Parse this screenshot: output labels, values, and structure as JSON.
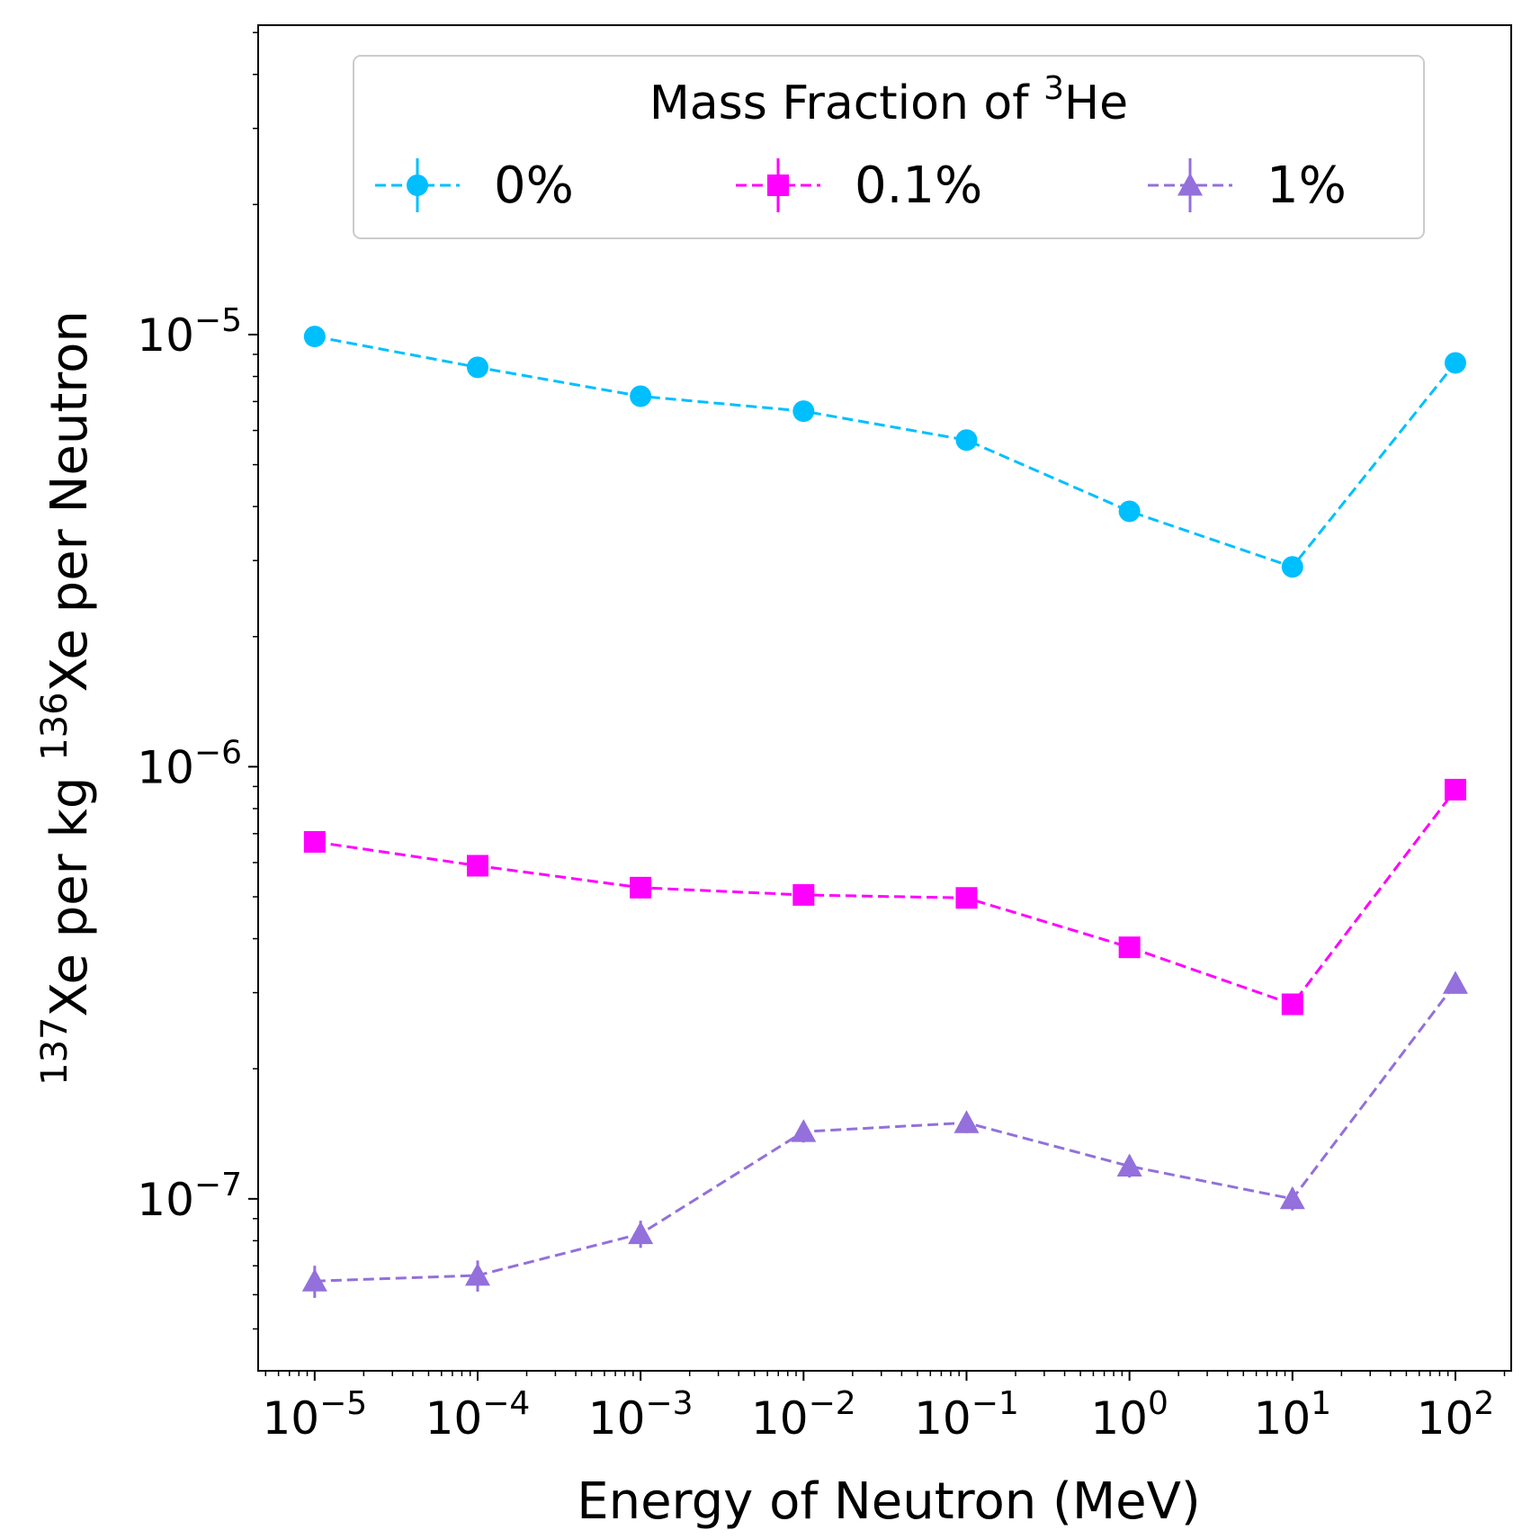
{
  "chart_data": {
    "type": "line",
    "title": "",
    "xlabel": "Energy of Neutron (MeV)",
    "ylabel": {
      "prefix_sup": "137",
      "prefix_text": "Xe per kg ",
      "mid_sup": "136",
      "suffix_text": "Xe per Neutron"
    },
    "xscale": "log",
    "yscale": "log",
    "xlim": [
      4.5e-06,
      220
    ],
    "ylim": [
      4e-08,
      5.2e-05
    ],
    "grid": false,
    "x_ticks": [
      {
        "value": 1e-05,
        "base": "10",
        "exp": "−5"
      },
      {
        "value": 0.0001,
        "base": "10",
        "exp": "−4"
      },
      {
        "value": 0.001,
        "base": "10",
        "exp": "−3"
      },
      {
        "value": 0.01,
        "base": "10",
        "exp": "−2"
      },
      {
        "value": 0.1,
        "base": "10",
        "exp": "−1"
      },
      {
        "value": 1,
        "base": "10",
        "exp": "0"
      },
      {
        "value": 10,
        "base": "10",
        "exp": "1"
      },
      {
        "value": 100,
        "base": "10",
        "exp": "2"
      }
    ],
    "y_ticks": [
      {
        "value": 1e-05,
        "base": "10",
        "exp": "−5"
      },
      {
        "value": 1e-06,
        "base": "10",
        "exp": "−6"
      },
      {
        "value": 1e-07,
        "base": "10",
        "exp": "−7"
      }
    ],
    "x": [
      1e-05,
      0.0001,
      0.001,
      0.01,
      0.1,
      1,
      10,
      100
    ],
    "legend": {
      "title_text": "Mass Fraction of ",
      "title_sup": "3",
      "title_suffix": "He",
      "placement": "top-center"
    },
    "series": [
      {
        "name": "0%",
        "marker": "circle",
        "color": "#00BFFF",
        "values": [
          9.9e-06,
          8.4e-06,
          7.2e-06,
          6.65e-06,
          5.7e-06,
          3.9e-06,
          2.9e-06,
          8.6e-06
        ],
        "errors": [
          1e-08,
          1e-08,
          1e-08,
          1e-08,
          1e-08,
          1e-08,
          1e-08,
          1e-08
        ]
      },
      {
        "name": "0.1%",
        "marker": "square",
        "color": "#FF00FF",
        "values": [
          6.7e-07,
          5.9e-07,
          5.25e-07,
          5.05e-07,
          4.97e-07,
          3.82e-07,
          2.82e-07,
          8.85e-07
        ],
        "errors": [
          2e-09,
          2e-09,
          2e-09,
          2e-09,
          2e-09,
          2e-09,
          1.4e-08,
          2e-09
        ]
      },
      {
        "name": "1%",
        "marker": "triangle",
        "color": "#9370DB",
        "values": [
          6.45e-08,
          6.65e-08,
          8.3e-08,
          1.43e-07,
          1.5e-07,
          1.19e-07,
          1e-07,
          3.15e-07
        ],
        "errors": [
          5.5e-09,
          5.5e-09,
          6e-09,
          8e-09,
          8e-09,
          7e-09,
          6e-09,
          1e-08
        ]
      }
    ]
  }
}
